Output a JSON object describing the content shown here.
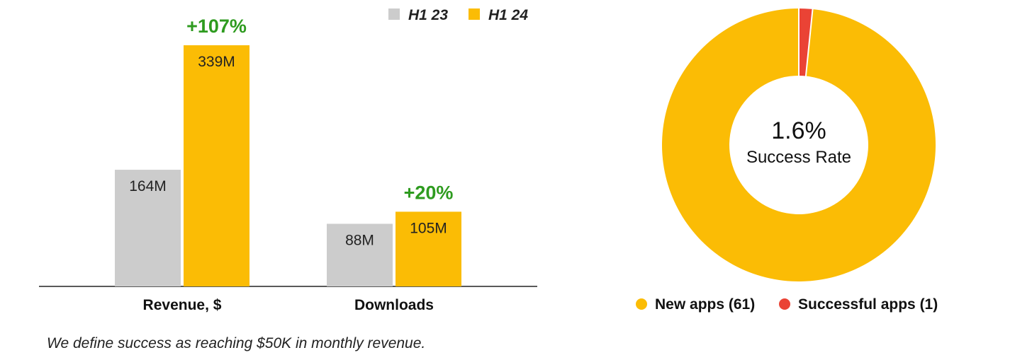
{
  "chart_data": [
    {
      "type": "bar",
      "categories": [
        "Revenue, $",
        "Downloads"
      ],
      "series": [
        {
          "name": "H1 23",
          "values": [
            164,
            88
          ],
          "labels": [
            "164M",
            "88M"
          ],
          "color": "#cccccc"
        },
        {
          "name": "H1 24",
          "values": [
            339,
            105
          ],
          "labels": [
            "339M",
            "105M"
          ],
          "color": "#fbbc05"
        }
      ],
      "annotations": [
        "+107%",
        "+20%"
      ],
      "annotation_color": "#2e9b1f",
      "ylim": [
        0,
        339
      ],
      "grid": false,
      "legend": "top-right"
    },
    {
      "type": "pie",
      "donut": true,
      "slices": [
        {
          "label": "New apps (61)",
          "value": 61,
          "color": "#fbbc05"
        },
        {
          "label": "Successful apps (1)",
          "value": 1,
          "color": "#ea4335"
        }
      ],
      "center_value": "1.6%",
      "center_label": "Success Rate",
      "legend": "bottom"
    }
  ],
  "footnote": "We define success as reaching $50K in monthly revenue."
}
